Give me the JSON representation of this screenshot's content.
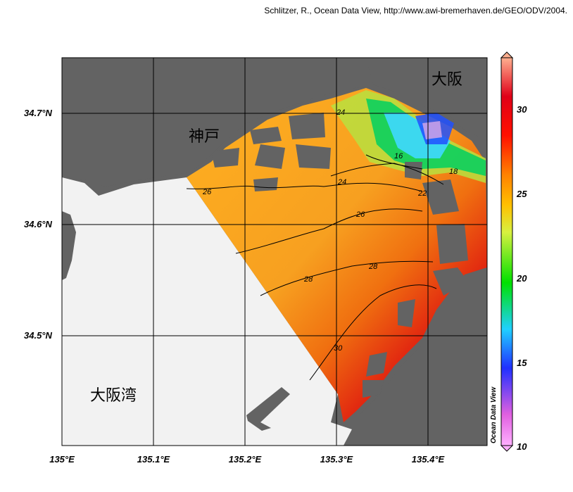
{
  "credit": "Schlitzer, R., Ocean Data View, http://www.awi-bremerhaven.de/GEO/ODV/2004.",
  "map": {
    "lat_labels": [
      "34.7°N",
      "34.6°N",
      "34.5°N"
    ],
    "lon_labels": [
      "135°E",
      "135.1°E",
      "135.2°E",
      "135.3°E",
      "135.4°E"
    ],
    "place_names": {
      "kobe": "神戸",
      "osaka": "大阪",
      "osaka_bay": "大阪湾"
    },
    "contour_labels": [
      "16",
      "18",
      "22",
      "24",
      "24",
      "26",
      "26",
      "28",
      "28",
      "30"
    ],
    "colors": {
      "land": "#636363",
      "no_data_sea": "#f2f2f2",
      "grid": "#000000"
    }
  },
  "colorbar": {
    "ticks": [
      "30",
      "25",
      "20",
      "15",
      "10"
    ],
    "range": [
      10,
      32
    ],
    "watermark": "Ocean Data View",
    "colors": [
      "#ff00ff",
      "#8080ff",
      "#1020ff",
      "#00c0ff",
      "#40e0c0",
      "#00e000",
      "#a0e040",
      "#ffff00",
      "#ffc000",
      "#ff8000",
      "#ff2000",
      "#e00010",
      "#ffb090"
    ]
  }
}
